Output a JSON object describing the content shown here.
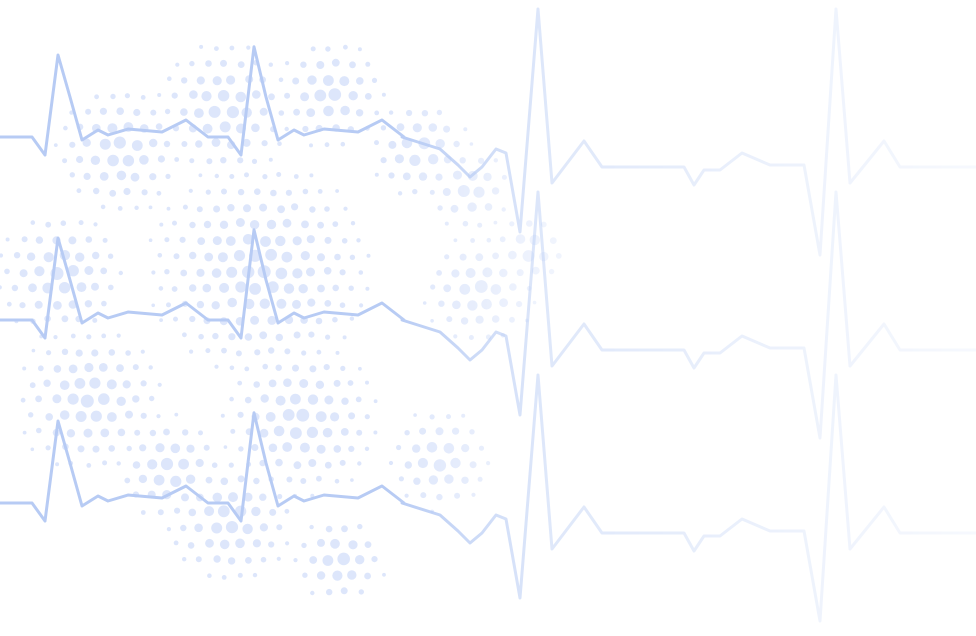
{
  "artwork": {
    "line_color": "#b7cbf4",
    "dot_color": "#dde6fb",
    "background": "#ffffff",
    "trace_count": 3,
    "fade_direction": "left-to-right"
  }
}
